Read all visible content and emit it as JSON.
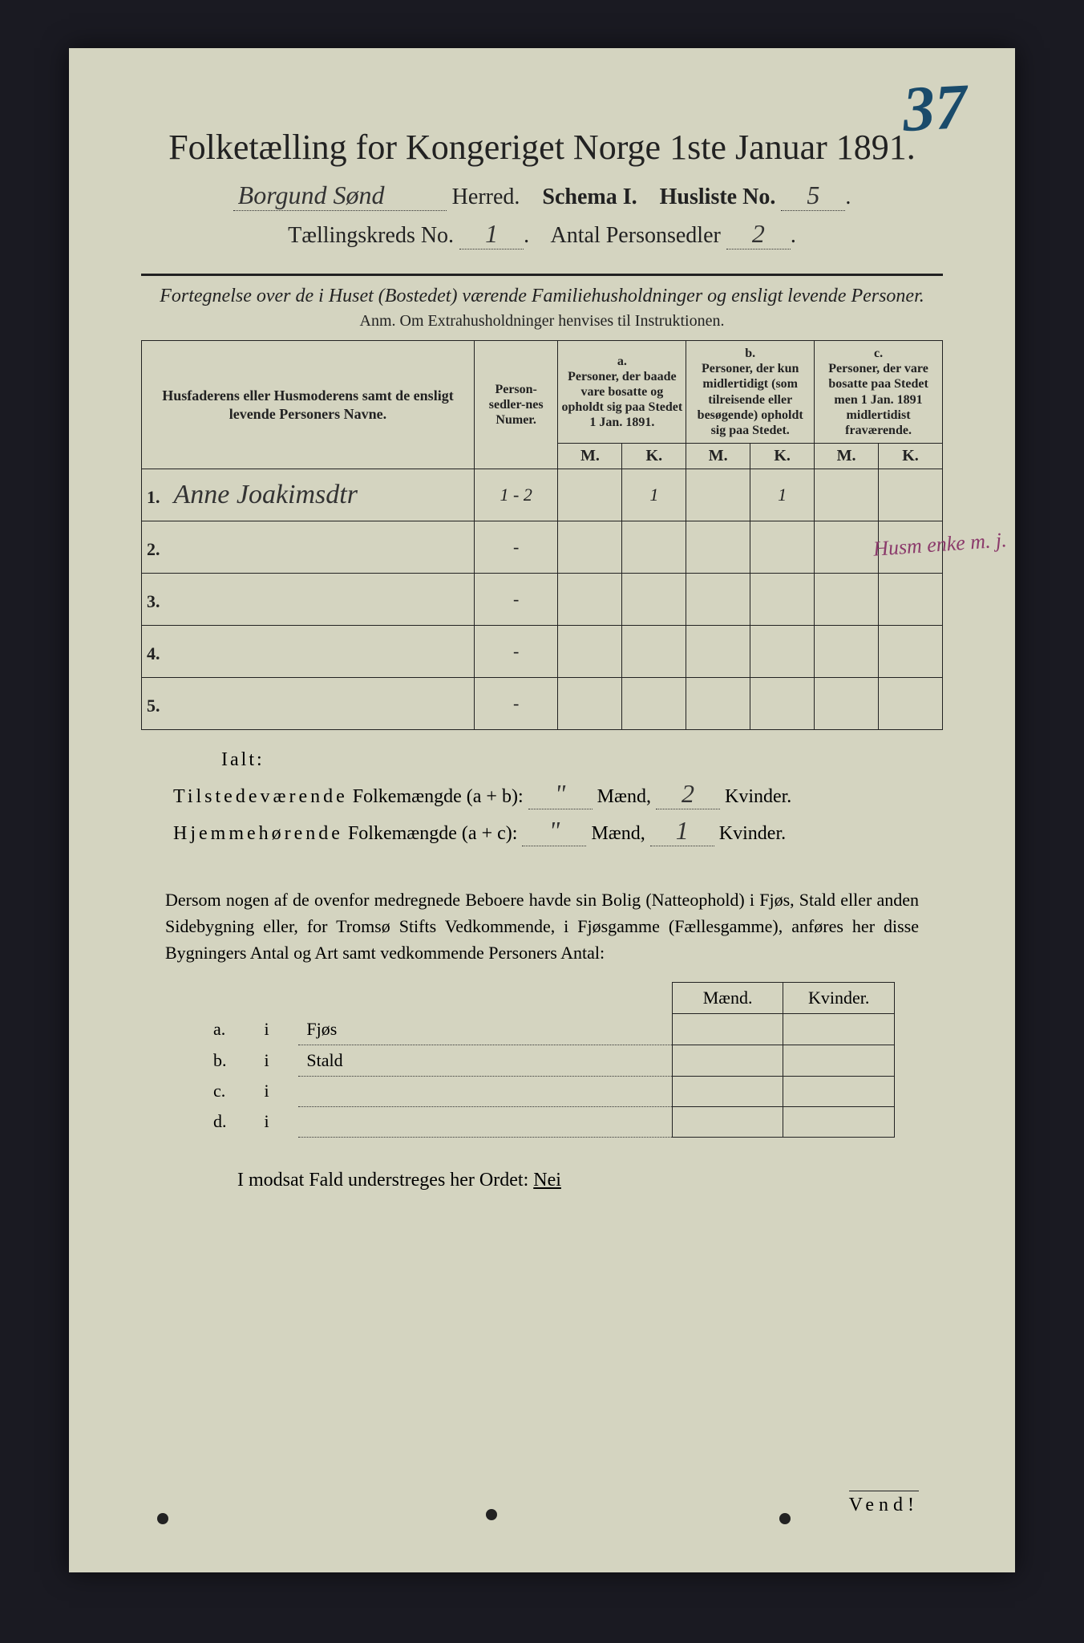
{
  "stamp_number": "37",
  "title": "Folketælling for Kongeriget Norge 1ste Januar 1891.",
  "line2": {
    "herred_value": "Borgund Sønd",
    "herred_label": "Herred.",
    "schema_label": "Schema I.",
    "husliste_label": "Husliste No.",
    "husliste_value": "5"
  },
  "line3": {
    "taellingskreds_label": "Tællingskreds No.",
    "taellingskreds_value": "1",
    "antal_label": "Antal Personsedler",
    "antal_value": "2"
  },
  "subtitle": "Fortegnelse over de i Huset (Bostedet) værende Familiehusholdninger og ensligt levende Personer.",
  "anm": "Anm. Om Extrahusholdninger henvises til Instruktionen.",
  "table": {
    "col_names": "Husfaderens eller Husmoderens samt de ensligt levende Personers Navne.",
    "col_personsedler": "Person-sedler-nes Numer.",
    "col_a_label": "a.",
    "col_a_text": "Personer, der baade vare bosatte og opholdt sig paa Stedet 1 Jan. 1891.",
    "col_b_label": "b.",
    "col_b_text": "Personer, der kun midlertidigt (som tilreisende eller besøgende) opholdt sig paa Stedet.",
    "col_c_label": "c.",
    "col_c_text": "Personer, der vare bosatte paa Stedet men 1 Jan. 1891 midlertidist fraværende.",
    "m": "M.",
    "k": "K.",
    "rows": [
      {
        "num": "1.",
        "name": "Anne Joakimsdtr",
        "sedler": "1 - 2",
        "a_m": "",
        "a_k": "1",
        "b_m": "",
        "b_k": "1",
        "c_m": "",
        "c_k": ""
      },
      {
        "num": "2.",
        "name": "",
        "sedler": "-",
        "a_m": "",
        "a_k": "",
        "b_m": "",
        "b_k": "",
        "c_m": "",
        "c_k": ""
      },
      {
        "num": "3.",
        "name": "",
        "sedler": "-",
        "a_m": "",
        "a_k": "",
        "b_m": "",
        "b_k": "",
        "c_m": "",
        "c_k": ""
      },
      {
        "num": "4.",
        "name": "",
        "sedler": "-",
        "a_m": "",
        "a_k": "",
        "b_m": "",
        "b_k": "",
        "c_m": "",
        "c_k": ""
      },
      {
        "num": "5.",
        "name": "",
        "sedler": "-",
        "a_m": "",
        "a_k": "",
        "b_m": "",
        "b_k": "",
        "c_m": "",
        "c_k": ""
      }
    ]
  },
  "margin_note": "Husm\nenke\nm. j.",
  "ialt": "Ialt:",
  "sum1": {
    "label": "Tilstedeværende",
    "folk": "Folkemængde (a + b):",
    "maend_val": "\"",
    "maend_lbl": "Mænd,",
    "kvinder_val": "2",
    "kvinder_lbl": "Kvinder."
  },
  "sum2": {
    "label": "Hjemmehørende",
    "folk": "Folkemængde (a + c):",
    "maend_val": "\"",
    "maend_lbl": "Mænd,",
    "kvinder_val": "1",
    "kvinder_lbl": "Kvinder."
  },
  "para": "Dersom nogen af de ovenfor medregnede Beboere havde sin Bolig (Natteophold) i Fjøs, Stald eller anden Sidebygning eller, for Tromsø Stifts Vedkommende, i Fjøsgamme (Fællesgamme), anføres her disse Bygningers Antal og Art samt vedkommende Personers Antal:",
  "outb": {
    "maend": "Mænd.",
    "kvinder": "Kvinder.",
    "rows": [
      {
        "letter": "a.",
        "i": "i",
        "label": "Fjøs"
      },
      {
        "letter": "b.",
        "i": "i",
        "label": "Stald"
      },
      {
        "letter": "c.",
        "i": "i",
        "label": ""
      },
      {
        "letter": "d.",
        "i": "i",
        "label": ""
      }
    ]
  },
  "nei_line": "I modsat Fald understreges her Ordet:",
  "nei_word": "Nei",
  "vend": "Vend!"
}
